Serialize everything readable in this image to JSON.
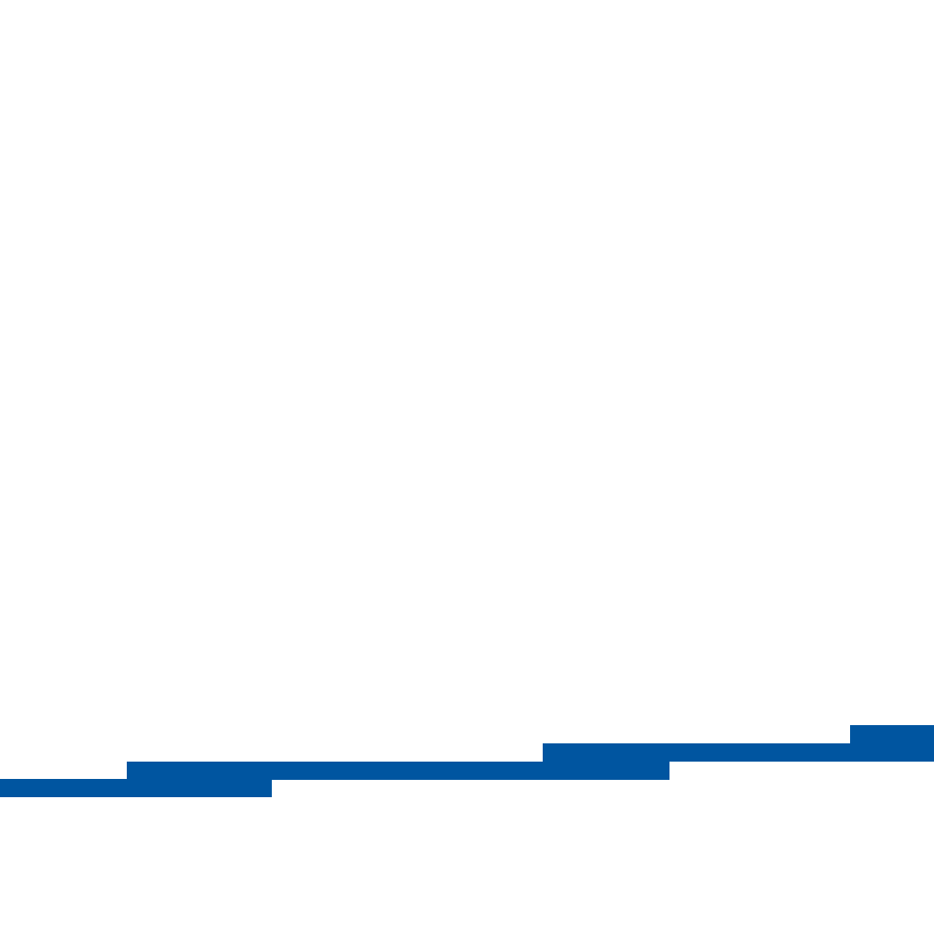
{
  "graphic": {
    "name": "stepped-blue-stripe",
    "background_color": "#ffffff",
    "stripe_color": "#0055a0",
    "segment_count": 4
  }
}
